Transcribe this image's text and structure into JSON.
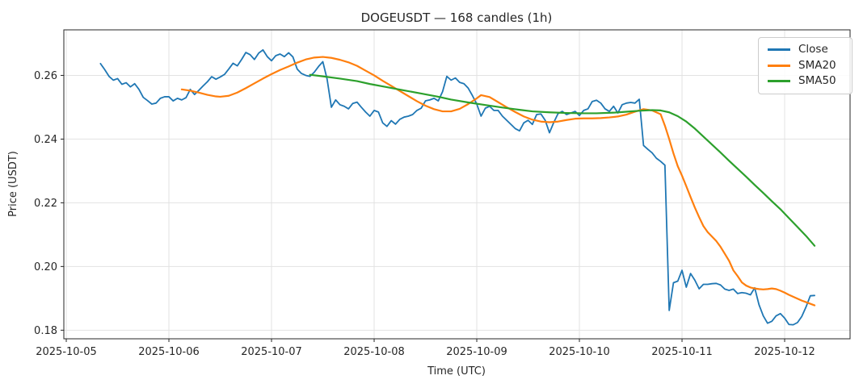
{
  "title": "DOGEUSDT — 168 candles (1h)",
  "chart_data": {
    "type": "line",
    "title": "DOGEUSDT — 168 candles (1h)",
    "xlabel": "Time (UTC)",
    "ylabel": "Price (USDT)",
    "symbol": "DOGEUSDT",
    "candle_count": 168,
    "interval": "1h",
    "x_unit": "hours since 2025-10-05 00:00 UTC",
    "xlim": [
      -0.57,
      183.3
    ],
    "ylim": [
      0.1773,
      0.2743
    ],
    "grid": true,
    "grid_color": "#e2e2e2",
    "spine_color": "#262626",
    "legend_position": "upper right",
    "x_ticks": [
      0,
      24,
      48,
      72,
      96,
      120,
      144,
      168
    ],
    "x_tick_labels": [
      "2025-10-05",
      "2025-10-06",
      "2025-10-07",
      "2025-10-08",
      "2025-10-09",
      "2025-10-10",
      "2025-10-11",
      "2025-10-12"
    ],
    "y_ticks": [
      0.18,
      0.2,
      0.22,
      0.24,
      0.26
    ],
    "y_tick_labels": [
      "0.18",
      "0.20",
      "0.22",
      "0.24",
      "0.26"
    ],
    "series": [
      {
        "name": "Close",
        "color": "#1f77b4",
        "width": 1.8,
        "start_hour": 8,
        "step_hours": 1,
        "values": [
          0.2637,
          0.2618,
          0.2597,
          0.2585,
          0.259,
          0.2572,
          0.2577,
          0.2564,
          0.2574,
          0.2556,
          0.2531,
          0.2521,
          0.251,
          0.2513,
          0.2528,
          0.2533,
          0.2533,
          0.252,
          0.2528,
          0.2523,
          0.253,
          0.2556,
          0.254,
          0.2553,
          0.2567,
          0.258,
          0.2596,
          0.2588,
          0.2595,
          0.2603,
          0.262,
          0.2638,
          0.263,
          0.265,
          0.2672,
          0.2665,
          0.265,
          0.267,
          0.268,
          0.2659,
          0.2646,
          0.2662,
          0.2667,
          0.2659,
          0.2671,
          0.2658,
          0.262,
          0.2606,
          0.26,
          0.2597,
          0.261,
          0.2628,
          0.2643,
          0.2588,
          0.25,
          0.2523,
          0.2508,
          0.2503,
          0.2495,
          0.2512,
          0.2516,
          0.25,
          0.2485,
          0.2472,
          0.249,
          0.2485,
          0.2451,
          0.244,
          0.2458,
          0.2447,
          0.2462,
          0.2469,
          0.2472,
          0.2477,
          0.249,
          0.2497,
          0.252,
          0.2523,
          0.2528,
          0.252,
          0.2549,
          0.2597,
          0.2585,
          0.2592,
          0.2578,
          0.2574,
          0.256,
          0.2536,
          0.251,
          0.2472,
          0.2497,
          0.2503,
          0.249,
          0.249,
          0.2472,
          0.2459,
          0.2446,
          0.2433,
          0.2426,
          0.2451,
          0.2459,
          0.2446,
          0.2477,
          0.2479,
          0.2459,
          0.242,
          0.2452,
          0.248,
          0.2487,
          0.2477,
          0.2482,
          0.2487,
          0.2474,
          0.249,
          0.2495,
          0.2518,
          0.2522,
          0.2513,
          0.2495,
          0.2487,
          0.2503,
          0.2482,
          0.2508,
          0.2513,
          0.2515,
          0.2513,
          0.2525,
          0.238,
          0.2368,
          0.2357,
          0.234,
          0.233,
          0.2318,
          0.1862,
          0.1949,
          0.1954,
          0.1988,
          0.1935,
          0.1978,
          0.1957,
          0.193,
          0.1944,
          0.1944,
          0.1946,
          0.1947,
          0.1942,
          0.1929,
          0.1925,
          0.1929,
          0.1915,
          0.1918,
          0.1916,
          0.1911,
          0.1933,
          0.188,
          0.1845,
          0.1822,
          0.1828,
          0.1845,
          0.1852,
          0.1838,
          0.1818,
          0.1817,
          0.1824,
          0.1843,
          0.1873,
          0.1908,
          0.1909
        ]
      },
      {
        "name": "SMA20",
        "color": "#ff7f0e",
        "width": 2.2,
        "points": [
          [
            27,
            0.2556
          ],
          [
            29,
            0.2552
          ],
          [
            31,
            0.2546
          ],
          [
            33,
            0.2539
          ],
          [
            35,
            0.2534
          ],
          [
            36,
            0.2533
          ],
          [
            38,
            0.2536
          ],
          [
            40,
            0.2546
          ],
          [
            42,
            0.256
          ],
          [
            44,
            0.2575
          ],
          [
            46,
            0.259
          ],
          [
            48,
            0.2604
          ],
          [
            50,
            0.2617
          ],
          [
            52,
            0.2628
          ],
          [
            54,
            0.264
          ],
          [
            56,
            0.265
          ],
          [
            58,
            0.2656
          ],
          [
            60,
            0.2658
          ],
          [
            62,
            0.2655
          ],
          [
            64,
            0.2649
          ],
          [
            66,
            0.2641
          ],
          [
            68,
            0.263
          ],
          [
            70,
            0.2615
          ],
          [
            72,
            0.26
          ],
          [
            74,
            0.2583
          ],
          [
            76,
            0.2567
          ],
          [
            78,
            0.2551
          ],
          [
            80,
            0.2535
          ],
          [
            82,
            0.2519
          ],
          [
            84,
            0.2505
          ],
          [
            86,
            0.2494
          ],
          [
            88,
            0.2487
          ],
          [
            90,
            0.2487
          ],
          [
            92,
            0.2495
          ],
          [
            94,
            0.251
          ],
          [
            96,
            0.2528
          ],
          [
            97,
            0.2538
          ],
          [
            99,
            0.2532
          ],
          [
            101,
            0.2516
          ],
          [
            103,
            0.25
          ],
          [
            105,
            0.2485
          ],
          [
            107,
            0.2471
          ],
          [
            109,
            0.2461
          ],
          [
            111,
            0.2455
          ],
          [
            113,
            0.2453
          ],
          [
            115,
            0.2455
          ],
          [
            117,
            0.246
          ],
          [
            119,
            0.2464
          ],
          [
            121,
            0.2465
          ],
          [
            123,
            0.2465
          ],
          [
            125,
            0.2466
          ],
          [
            127,
            0.2468
          ],
          [
            129,
            0.2471
          ],
          [
            131,
            0.2477
          ],
          [
            133,
            0.2486
          ],
          [
            135,
            0.2494
          ],
          [
            137,
            0.249
          ],
          [
            139,
            0.2478
          ],
          [
            140,
            0.2442
          ],
          [
            141,
            0.24
          ],
          [
            142,
            0.2355
          ],
          [
            143,
            0.2315
          ],
          [
            144,
            0.2285
          ],
          [
            145,
            0.2252
          ],
          [
            146,
            0.2218
          ],
          [
            147,
            0.2185
          ],
          [
            148,
            0.2155
          ],
          [
            149,
            0.2127
          ],
          [
            150,
            0.2108
          ],
          [
            151,
            0.2094
          ],
          [
            152,
            0.208
          ],
          [
            153,
            0.2062
          ],
          [
            154,
            0.204
          ],
          [
            155,
            0.2018
          ],
          [
            156,
            0.1988
          ],
          [
            157,
            0.197
          ],
          [
            158,
            0.195
          ],
          [
            159,
            0.194
          ],
          [
            160,
            0.1934
          ],
          [
            161,
            0.1931
          ],
          [
            162,
            0.1929
          ],
          [
            163,
            0.1928
          ],
          [
            164,
            0.1929
          ],
          [
            165,
            0.1931
          ],
          [
            166,
            0.1929
          ],
          [
            167,
            0.1924
          ],
          [
            168,
            0.1918
          ],
          [
            169,
            0.1911
          ],
          [
            170,
            0.1905
          ],
          [
            171,
            0.1899
          ],
          [
            172,
            0.1893
          ],
          [
            173,
            0.1888
          ],
          [
            174,
            0.1883
          ],
          [
            175,
            0.1878
          ]
        ]
      },
      {
        "name": "SMA50",
        "color": "#2ca02c",
        "width": 2.2,
        "points": [
          [
            57,
            0.2602
          ],
          [
            60,
            0.2597
          ],
          [
            64,
            0.259
          ],
          [
            68,
            0.2582
          ],
          [
            71,
            0.2573
          ],
          [
            75,
            0.2563
          ],
          [
            79,
            0.2553
          ],
          [
            83,
            0.2543
          ],
          [
            87,
            0.2533
          ],
          [
            90,
            0.2524
          ],
          [
            94,
            0.2515
          ],
          [
            98,
            0.2507
          ],
          [
            102,
            0.2499
          ],
          [
            106,
            0.2492
          ],
          [
            109,
            0.2487
          ],
          [
            113,
            0.2484
          ],
          [
            117,
            0.2482
          ],
          [
            121,
            0.2481
          ],
          [
            124,
            0.2481
          ],
          [
            128,
            0.2483
          ],
          [
            131,
            0.2486
          ],
          [
            134,
            0.2489
          ],
          [
            137,
            0.2491
          ],
          [
            139,
            0.249
          ],
          [
            141,
            0.2484
          ],
          [
            143,
            0.2472
          ],
          [
            145,
            0.2455
          ],
          [
            147,
            0.2433
          ],
          [
            149,
            0.2408
          ],
          [
            151,
            0.2383
          ],
          [
            153,
            0.2358
          ],
          [
            155,
            0.2332
          ],
          [
            157,
            0.2307
          ],
          [
            159,
            0.2282
          ],
          [
            161,
            0.2256
          ],
          [
            163,
            0.2231
          ],
          [
            165,
            0.2205
          ],
          [
            167,
            0.218
          ],
          [
            169,
            0.2152
          ],
          [
            171,
            0.2124
          ],
          [
            173,
            0.2096
          ],
          [
            175,
            0.2065
          ]
        ]
      }
    ]
  },
  "legend": {
    "items": [
      {
        "label": "Close"
      },
      {
        "label": "SMA20"
      },
      {
        "label": "SMA50"
      }
    ]
  }
}
